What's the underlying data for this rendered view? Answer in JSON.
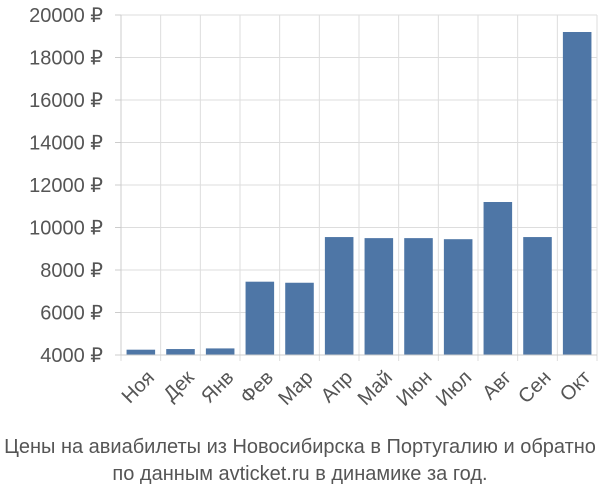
{
  "chart_data": {
    "type": "bar",
    "title": "",
    "xlabel": "",
    "ylabel": "",
    "categories": [
      "Ноя",
      "Дек",
      "Янв",
      "Фев",
      "Мар",
      "Апр",
      "Май",
      "Июн",
      "Июл",
      "Авг",
      "Сен",
      "Окт"
    ],
    "values": [
      4250,
      4280,
      4310,
      7450,
      7400,
      9550,
      9500,
      9500,
      9450,
      11200,
      9550,
      19200
    ],
    "ylim": [
      4000,
      20000
    ],
    "yticks": [
      4000,
      6000,
      8000,
      10000,
      12000,
      14000,
      16000,
      18000,
      20000
    ],
    "ytick_labels": [
      "4000 ₽",
      "6000 ₽",
      "8000 ₽",
      "10000 ₽",
      "12000 ₽",
      "14000 ₽",
      "16000 ₽",
      "18000 ₽",
      "20000 ₽"
    ],
    "bar_color": "#4e76a6",
    "grid": true,
    "legend": "none"
  },
  "caption": {
    "line1": "Цены на авиабилеты из Новосибирска в Португалию и обратно",
    "line2": "по данным avticket.ru в динамике за год."
  }
}
